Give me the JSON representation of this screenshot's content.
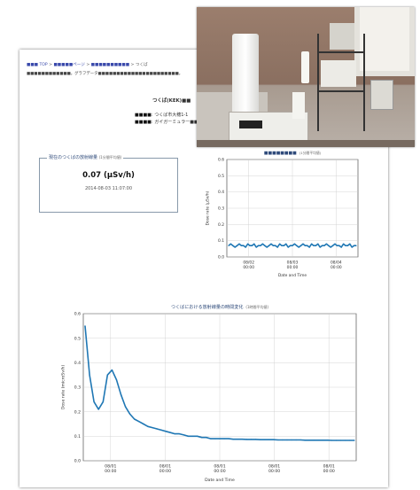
{
  "page": {
    "breadcrumb": [
      "■■■ TOP",
      "■■■■■ページ",
      "■■■■■■■■■■",
      "つくば"
    ],
    "description": "■■■■■■■■■■■■。グラフデータ■■■■■■■■■■■■■■■■■■■■■■。",
    "station_title": "つくば(KEK)■■",
    "device_info": [
      {
        "label": "■■■■",
        "value": "つくば市大穂1-1"
      },
      {
        "label": "■■■■",
        "value": "ガイガーミュラー■■■■■■"
      }
    ]
  },
  "current_panel": {
    "title": "現在のつくばの放射線量",
    "title_note": "(1分間平均値)",
    "reading": "0.07 (μSv/h)",
    "timestamp": "2014-08-03 11:07:00"
  },
  "chart_data": [
    {
      "id": "recent",
      "type": "line",
      "title": "■■■■■■■■",
      "title_note": "(1分間平均値)",
      "xlabel": "Date and Time",
      "ylabel": "Dose rate (μSv/h)",
      "ylim": [
        0,
        0.6
      ],
      "yticks": [
        0.0,
        0.1,
        0.2,
        0.3,
        0.4,
        0.5,
        0.6
      ],
      "xticks": [
        {
          "date": "08/02",
          "time": "00:00"
        },
        {
          "date": "08/03",
          "time": "00:00"
        },
        {
          "date": "08/04",
          "time": "00:00"
        }
      ],
      "grid": true,
      "series": [
        {
          "values": [
            0.07,
            0.08,
            0.07,
            0.06,
            0.07,
            0.08,
            0.07,
            0.07,
            0.06,
            0.08,
            0.07,
            0.07,
            0.08,
            0.06,
            0.07,
            0.07,
            0.08,
            0.07,
            0.06,
            0.07,
            0.08,
            0.07,
            0.07,
            0.06,
            0.08,
            0.07,
            0.07,
            0.08,
            0.06,
            0.07,
            0.07,
            0.08,
            0.07,
            0.06,
            0.07,
            0.08,
            0.07,
            0.07,
            0.06,
            0.08,
            0.07,
            0.07,
            0.08,
            0.06,
            0.07,
            0.07,
            0.08,
            0.07,
            0.06,
            0.07,
            0.08,
            0.07,
            0.07,
            0.06,
            0.08,
            0.07,
            0.07,
            0.08,
            0.06,
            0.07,
            0.07
          ]
        }
      ]
    },
    {
      "id": "history",
      "type": "line",
      "title": "つくばにおける放射線量の時間変化",
      "title_note": "(1時間平均値)",
      "xlabel": "Date and Time",
      "ylabel": "Dose rate (microSv/h)",
      "ylim": [
        0,
        0.6
      ],
      "yticks": [
        0.0,
        0.1,
        0.2,
        0.3,
        0.4,
        0.5,
        0.6
      ],
      "xticks": [
        {
          "date": "08/01",
          "time": "00:00"
        },
        {
          "date": "08/01",
          "time": "00:00"
        },
        {
          "date": "08/01",
          "time": "00:00"
        },
        {
          "date": "08/01",
          "time": "00:00"
        },
        {
          "date": "08/01",
          "time": "00:00"
        }
      ],
      "grid": true,
      "series": [
        {
          "values": [
            0.55,
            0.35,
            0.24,
            0.21,
            0.24,
            0.35,
            0.37,
            0.33,
            0.27,
            0.22,
            0.19,
            0.17,
            0.16,
            0.15,
            0.14,
            0.135,
            0.13,
            0.125,
            0.12,
            0.115,
            0.11,
            0.11,
            0.105,
            0.1,
            0.1,
            0.1,
            0.095,
            0.095,
            0.09,
            0.09,
            0.09,
            0.09,
            0.09,
            0.088,
            0.088,
            0.088,
            0.087,
            0.087,
            0.087,
            0.086,
            0.086,
            0.086,
            0.086,
            0.085,
            0.085,
            0.085,
            0.085,
            0.085,
            0.085,
            0.084,
            0.084,
            0.084,
            0.084,
            0.084,
            0.084,
            0.083,
            0.083,
            0.083,
            0.083,
            0.083,
            0.083
          ]
        }
      ]
    }
  ],
  "colors": {
    "series": "#1f77b4",
    "grid": "#cccccc",
    "panel_border": "#8899aa"
  },
  "photo": {
    "subject": "radiation-monitoring-equipment-photo"
  }
}
